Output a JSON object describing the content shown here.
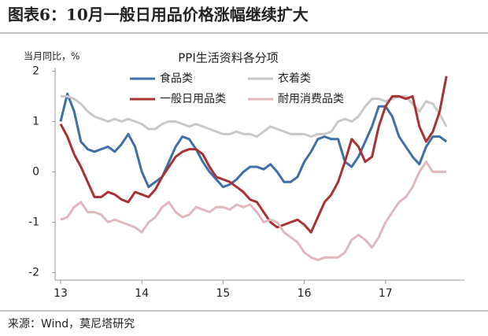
{
  "chart_data": {
    "type": "line",
    "title": "图表6：10月一般日用品价格涨幅继续扩大",
    "subtitle": "PPI生活资料各分项",
    "y_label": "当月同比，%",
    "source": "来源：Wind，莫尼塔研究",
    "categories": [
      "13",
      null,
      null,
      null,
      null,
      null,
      null,
      null,
      null,
      null,
      null,
      null,
      "14",
      null,
      null,
      null,
      null,
      null,
      null,
      null,
      null,
      null,
      null,
      null,
      "15",
      null,
      null,
      null,
      null,
      null,
      null,
      null,
      null,
      null,
      null,
      null,
      "16",
      null,
      null,
      null,
      null,
      null,
      null,
      null,
      null,
      null,
      null,
      null,
      "17",
      null,
      null,
      null,
      null,
      null,
      null,
      null,
      null,
      null
    ],
    "ylim": [
      -2.15,
      2.1
    ],
    "yticks": [
      2,
      1,
      0,
      -1,
      -2
    ],
    "series": [
      {
        "name": "食品类",
        "color": "#3d6fa8",
        "values": [
          1.0,
          1.55,
          1.2,
          0.6,
          0.45,
          0.4,
          0.45,
          0.5,
          0.4,
          0.55,
          0.75,
          0.5,
          0.0,
          -0.3,
          -0.2,
          -0.1,
          0.2,
          0.5,
          0.7,
          0.65,
          0.45,
          0.2,
          0.0,
          -0.15,
          -0.3,
          -0.25,
          -0.15,
          0.0,
          0.1,
          0.1,
          0.05,
          0.15,
          0.0,
          -0.2,
          -0.2,
          -0.1,
          0.2,
          0.4,
          0.65,
          0.7,
          0.65,
          0.65,
          0.2,
          0.1,
          0.3,
          0.6,
          0.9,
          1.3,
          1.3,
          1.1,
          0.7,
          0.5,
          0.3,
          0.15,
          0.5,
          0.7,
          0.7,
          0.6
        ]
      },
      {
        "name": "衣着类",
        "color": "#c8c8c8",
        "values": [
          1.5,
          1.5,
          1.45,
          1.35,
          1.2,
          1.1,
          1.05,
          1.0,
          1.05,
          1.0,
          1.05,
          1.0,
          0.95,
          0.85,
          0.85,
          0.95,
          1.0,
          1.0,
          0.95,
          0.9,
          0.95,
          0.9,
          0.85,
          0.8,
          0.75,
          0.75,
          0.8,
          0.75,
          0.75,
          0.7,
          0.8,
          0.9,
          0.85,
          0.8,
          0.75,
          0.75,
          0.75,
          0.7,
          0.75,
          0.75,
          0.8,
          1.0,
          1.05,
          1.0,
          1.1,
          1.3,
          1.45,
          1.45,
          1.4,
          1.45,
          1.5,
          1.5,
          1.35,
          1.2,
          1.4,
          1.35,
          1.15,
          0.9
        ]
      },
      {
        "name": "一般日用品类",
        "color": "#a83232",
        "values": [
          0.95,
          0.7,
          0.35,
          0.1,
          -0.2,
          -0.5,
          -0.5,
          -0.4,
          -0.45,
          -0.55,
          -0.6,
          -0.4,
          -0.45,
          -0.5,
          -0.35,
          -0.1,
          0.1,
          0.3,
          0.4,
          0.45,
          0.45,
          0.35,
          0.1,
          -0.1,
          -0.15,
          -0.2,
          -0.3,
          -0.4,
          -0.55,
          -0.6,
          -0.8,
          -1.0,
          -1.1,
          -1.05,
          -1.0,
          -0.95,
          -1.05,
          -1.2,
          -0.9,
          -0.6,
          -0.45,
          -0.2,
          0.2,
          0.65,
          0.5,
          0.2,
          0.3,
          0.9,
          1.3,
          1.5,
          1.5,
          1.45,
          1.5,
          0.9,
          0.6,
          0.8,
          1.2,
          1.9
        ]
      },
      {
        "name": "耐用消费品类",
        "color": "#e0b8bc",
        "values": [
          -0.95,
          -0.9,
          -0.7,
          -0.6,
          -0.8,
          -0.8,
          -0.85,
          -1.0,
          -0.95,
          -1.0,
          -1.05,
          -1.1,
          -1.2,
          -1.0,
          -0.9,
          -0.7,
          -0.6,
          -0.8,
          -0.9,
          -0.85,
          -0.7,
          -0.75,
          -0.8,
          -0.7,
          -0.7,
          -0.75,
          -0.65,
          -0.7,
          -0.65,
          -0.8,
          -1.0,
          -0.95,
          -1.0,
          -1.2,
          -1.3,
          -1.4,
          -1.6,
          -1.7,
          -1.75,
          -1.7,
          -1.7,
          -1.7,
          -1.6,
          -1.35,
          -1.25,
          -1.35,
          -1.5,
          -1.3,
          -1.0,
          -0.8,
          -0.6,
          -0.5,
          -0.3,
          0.0,
          0.2,
          0.0,
          0.0,
          0.0
        ]
      }
    ]
  }
}
